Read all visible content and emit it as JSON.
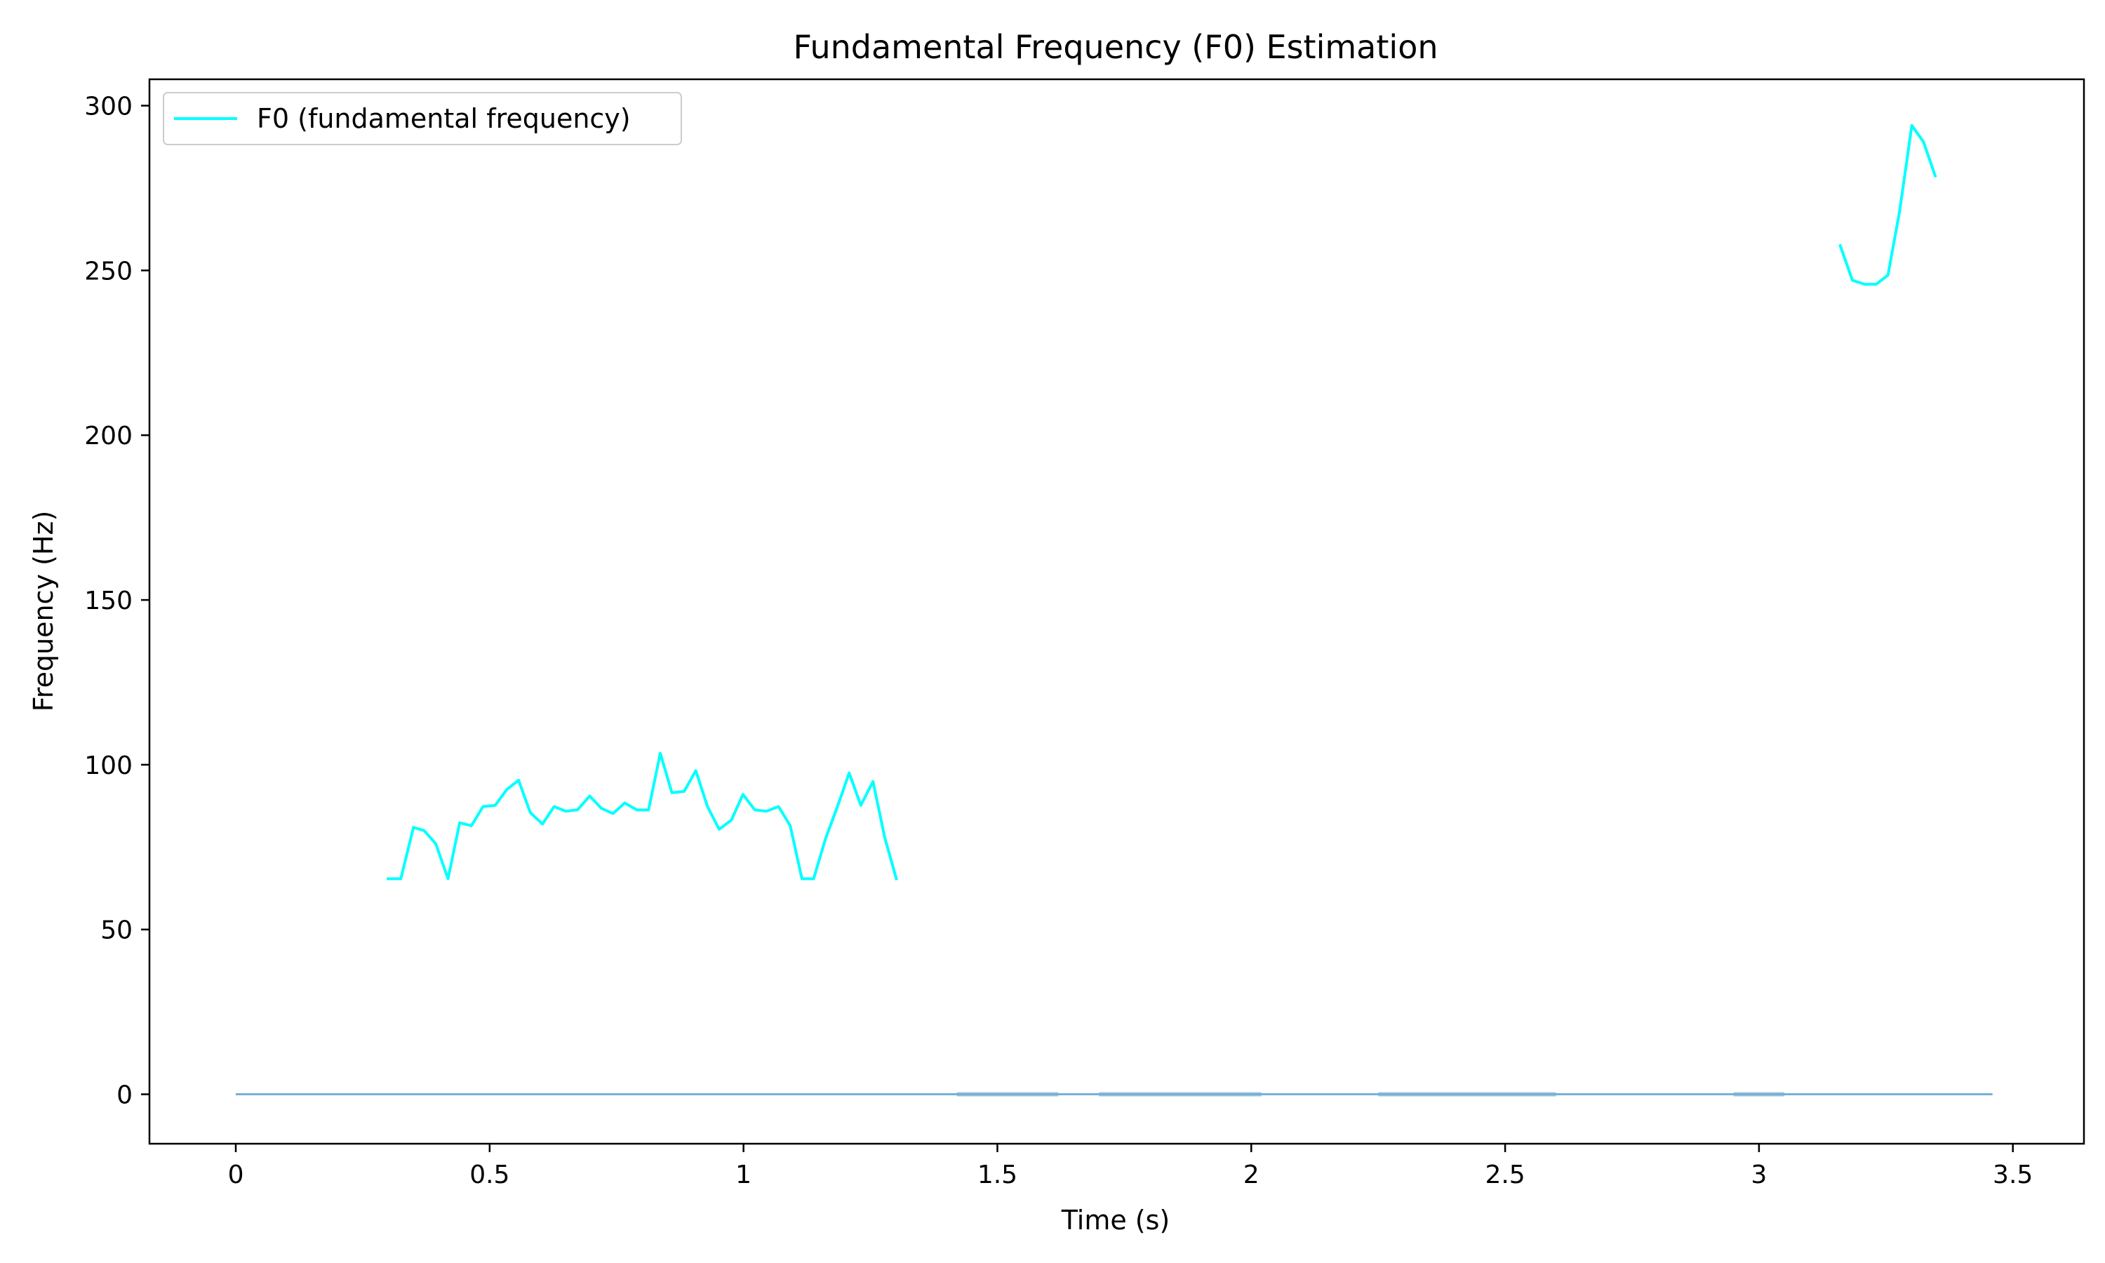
{
  "chart_data": {
    "type": "line",
    "title": "Fundamental Frequency (F0) Estimation",
    "xlabel": "Time (s)",
    "ylabel": "Frequency (Hz)",
    "xlim": [
      -0.17,
      3.64
    ],
    "ylim": [
      -15,
      308
    ],
    "xticks": [
      0,
      0.5,
      1,
      1.5,
      2,
      2.5,
      3,
      3.5
    ],
    "xtick_labels": [
      "0",
      "0.5",
      "1",
      "1.5",
      "2",
      "2.5",
      "3",
      "3.5"
    ],
    "yticks": [
      0,
      50,
      100,
      150,
      200,
      250,
      300
    ],
    "ytick_labels": [
      "0",
      "50",
      "100",
      "150",
      "200",
      "250",
      "300"
    ],
    "grid": false,
    "legend": {
      "placement": "top-left"
    },
    "series": [
      {
        "name": "F0 (fundamental frequency)",
        "color": "#00ffff",
        "segments": [
          [
            [
              0.3,
              65.4
            ],
            [
              0.325,
              65.4
            ],
            [
              0.35,
              81
            ],
            [
              0.371,
              80
            ],
            [
              0.394,
              76
            ],
            [
              0.418,
              65.4
            ],
            [
              0.441,
              82.4
            ],
            [
              0.464,
              81.5
            ],
            [
              0.487,
              87.3
            ],
            [
              0.511,
              87.7
            ],
            [
              0.534,
              92.5
            ],
            [
              0.557,
              95.3
            ],
            [
              0.58,
              85.5
            ],
            [
              0.604,
              82
            ],
            [
              0.627,
              87.3
            ],
            [
              0.65,
              85.9
            ],
            [
              0.673,
              86.3
            ],
            [
              0.697,
              90.5
            ],
            [
              0.72,
              86.8
            ],
            [
              0.743,
              85.2
            ],
            [
              0.766,
              88.4
            ],
            [
              0.79,
              86.3
            ],
            [
              0.813,
              86.3
            ],
            [
              0.836,
              103.5
            ],
            [
              0.859,
              91.5
            ],
            [
              0.883,
              91.9
            ],
            [
              0.906,
              98.2
            ],
            [
              0.929,
              87.3
            ],
            [
              0.952,
              80.4
            ],
            [
              0.976,
              83.2
            ],
            [
              0.999,
              91
            ],
            [
              1.022,
              86.3
            ],
            [
              1.045,
              85.9
            ],
            [
              1.069,
              87.3
            ],
            [
              1.092,
              81.5
            ],
            [
              1.115,
              65.4
            ],
            [
              1.138,
              65.4
            ],
            [
              1.162,
              77.8
            ],
            [
              1.185,
              87.3
            ],
            [
              1.208,
              97.5
            ],
            [
              1.231,
              87.7
            ],
            [
              1.255,
              94.9
            ],
            [
              1.278,
              78
            ],
            [
              1.301,
              65.4
            ]
          ],
          [
            [
              3.16,
              257.5
            ],
            [
              3.184,
              247
            ],
            [
              3.208,
              245.8
            ],
            [
              3.231,
              245.8
            ],
            [
              3.254,
              248.6
            ],
            [
              3.277,
              268
            ],
            [
              3.301,
              294
            ],
            [
              3.324,
              289
            ],
            [
              3.347,
              278.7
            ]
          ]
        ]
      },
      {
        "name": "",
        "color": "#77b0d6",
        "baseline": true,
        "x_range": [
          0,
          3.46
        ],
        "value": 0,
        "dense_regions": [
          [
            1.42,
            1.62
          ],
          [
            1.7,
            2.02
          ],
          [
            2.25,
            2.6
          ],
          [
            2.95,
            3.05
          ]
        ]
      }
    ]
  }
}
